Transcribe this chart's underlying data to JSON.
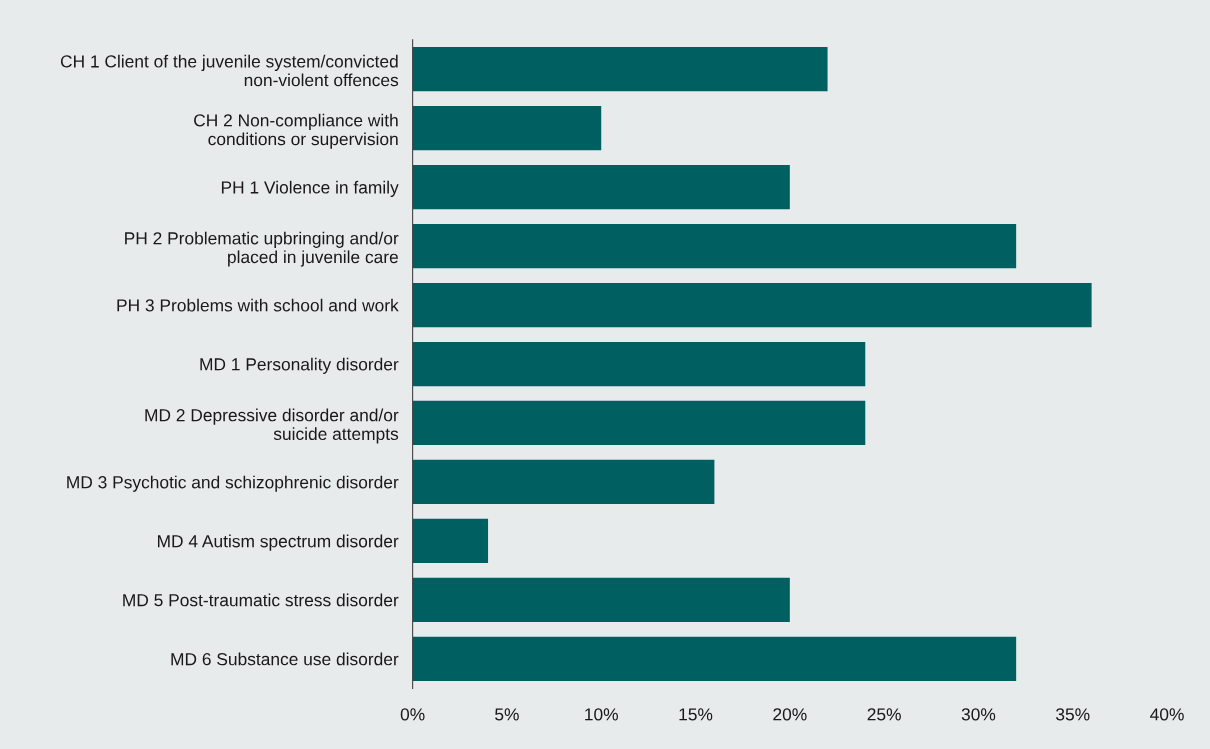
{
  "chart_data": {
    "type": "bar",
    "orientation": "horizontal",
    "categories": [
      "CH 1 Client of the juvenile system/convicted\nnon-violent offences",
      "CH 2 Non-compliance with\nconditions or supervision",
      "PH 1 Violence in family",
      "PH 2 Problematic upbringing and/or\nplaced in juvenile care",
      "PH 3 Problems with school and work",
      "MD 1 Personality disorder",
      "MD 2 Depressive disorder and/or\nsuicide attempts",
      "MD 3 Psychotic and schizophrenic disorder",
      "MD 4 Autism spectrum disorder",
      "MD 5 Post-traumatic stress disorder",
      "MD 6 Substance use disorder"
    ],
    "values": [
      22,
      10,
      20,
      32,
      36,
      24,
      24,
      16,
      4,
      20,
      32
    ],
    "color": "#005f60",
    "xlim": [
      0,
      40
    ],
    "xticks": [
      {
        "value": 0,
        "label": "0%"
      },
      {
        "value": 5,
        "label": "5%"
      },
      {
        "value": 10,
        "label": "10%"
      },
      {
        "value": 15,
        "label": "15%"
      },
      {
        "value": 20,
        "label": "20%"
      },
      {
        "value": 25,
        "label": "25%"
      },
      {
        "value": 30,
        "label": "30%"
      },
      {
        "value": 35,
        "label": "35%"
      },
      {
        "value": 40,
        "label": "40%"
      }
    ],
    "grid": false
  }
}
